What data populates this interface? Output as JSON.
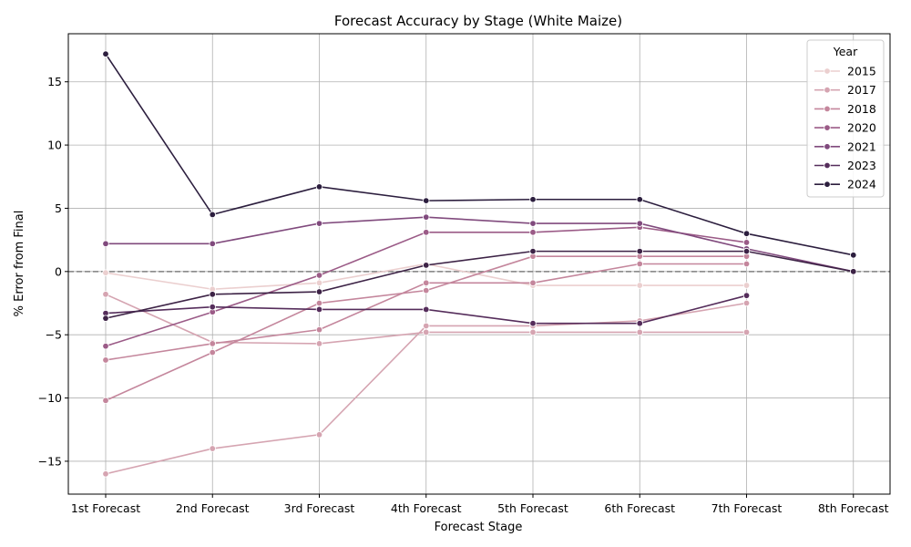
{
  "chart_data": {
    "type": "line",
    "title": "Forecast Accuracy by Stage (White Maize)",
    "xlabel": "Forecast Stage",
    "ylabel": "% Error from Final",
    "categories": [
      "1st Forecast",
      "2nd Forecast",
      "3rd Forecast",
      "4th Forecast",
      "5th Forecast",
      "6th Forecast",
      "7th Forecast",
      "8th Forecast"
    ],
    "ylim": [
      -17.6,
      18.8
    ],
    "yticks": [
      -15,
      -10,
      -5,
      0,
      5,
      10,
      15
    ],
    "ytick_labels": [
      "−15",
      "−10",
      "−5",
      "0",
      "5",
      "10",
      "15"
    ],
    "grid": true,
    "reference_line": 0,
    "legend": {
      "title": "Year",
      "placement": "top-right"
    },
    "series": [
      {
        "name": "2015",
        "color": "#ebcfcf",
        "values": [
          -0.1,
          -1.4,
          -0.9,
          0.6,
          -1.1,
          -1.1,
          -1.1,
          null
        ]
      },
      {
        "name": "2017",
        "color": "#d5a4b1",
        "values": [
          -16.0,
          -14.0,
          -12.9,
          -4.3,
          -4.3,
          -3.9,
          -2.5,
          null
        ]
      },
      {
        "name": "2017",
        "color": "#d5a4b1",
        "values": [
          -1.8,
          -5.6,
          -5.7,
          -4.8,
          -4.8,
          -4.8,
          -4.8,
          null
        ]
      },
      {
        "name": "2018",
        "color": "#c4869c",
        "values": [
          -10.2,
          -6.4,
          -2.5,
          -1.5,
          1.2,
          1.2,
          1.2,
          null
        ]
      },
      {
        "name": "2018",
        "color": "#c4869c",
        "values": [
          -7.0,
          -5.7,
          -4.6,
          -0.9,
          -0.9,
          0.6,
          0.6,
          null
        ]
      },
      {
        "name": "2020",
        "color": "#9b5b87",
        "values": [
          -5.9,
          -3.2,
          -0.3,
          3.1,
          3.1,
          3.5,
          2.3,
          null
        ]
      },
      {
        "name": "2021",
        "color": "#804a7d",
        "values": [
          2.2,
          2.2,
          3.8,
          4.3,
          3.8,
          3.8,
          1.8,
          0.0
        ]
      },
      {
        "name": "2023",
        "color": "#552d5b",
        "values": [
          -3.3,
          -2.8,
          -3.0,
          -3.0,
          -4.1,
          -4.1,
          -1.9,
          null
        ]
      },
      {
        "name": "2023",
        "color": "#3d2346",
        "values": [
          -3.7,
          -1.8,
          -1.6,
          0.5,
          1.6,
          1.6,
          1.6,
          0.0
        ]
      },
      {
        "name": "2024",
        "color": "#2c1e3e",
        "values": [
          17.2,
          4.5,
          6.7,
          5.6,
          5.7,
          5.7,
          3.0,
          1.3
        ]
      }
    ],
    "legend_entries": [
      {
        "label": "2015",
        "color": "#ebcfcf"
      },
      {
        "label": "2017",
        "color": "#d5a4b1"
      },
      {
        "label": "2018",
        "color": "#c4869c"
      },
      {
        "label": "2020",
        "color": "#9b5b87"
      },
      {
        "label": "2021",
        "color": "#804a7d"
      },
      {
        "label": "2023",
        "color": "#552d5b"
      },
      {
        "label": "2024",
        "color": "#2c1e3e"
      }
    ]
  }
}
